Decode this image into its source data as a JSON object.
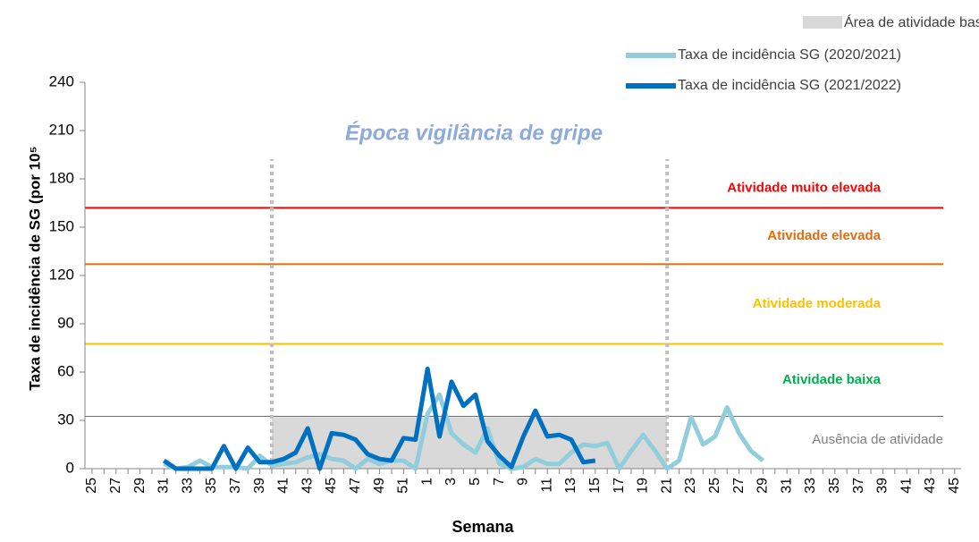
{
  "chart_data": {
    "type": "line",
    "annotation": "Época vigilância de gripe",
    "x_label": "Semana",
    "y_label": "Taxa de incidência de SG  (por 10⁵",
    "categories": [
      "25",
      null,
      "27",
      null,
      "29",
      null,
      "31",
      null,
      "33",
      null,
      "35",
      null,
      "37",
      null,
      "39",
      null,
      "41",
      null,
      "43",
      null,
      "45",
      null,
      "47",
      null,
      "49",
      null,
      "51",
      null,
      "1",
      null,
      "3",
      null,
      "5",
      null,
      "7",
      null,
      "9",
      null,
      "11",
      null,
      "13",
      null,
      "15",
      null,
      "17",
      null,
      "19",
      null,
      "21",
      null,
      "23",
      null,
      "25",
      null,
      "27",
      null,
      "29",
      null,
      "31",
      null,
      "33",
      null,
      "35",
      null,
      "37",
      null,
      "39",
      null,
      "41",
      null,
      "43",
      null,
      "45"
    ],
    "ylim": [
      0,
      240
    ],
    "yticks": [
      0,
      30,
      60,
      90,
      120,
      150,
      180,
      210,
      240
    ],
    "series": [
      {
        "name": "Taxa de incidência SG (2020/2021)",
        "color": "#92cddc",
        "values": [
          null,
          null,
          null,
          null,
          null,
          null,
          3,
          0,
          1,
          5,
          1,
          1,
          1,
          0,
          8,
          2,
          3,
          4,
          7,
          9,
          6,
          5,
          0,
          6,
          3,
          5,
          5,
          0,
          34,
          46,
          22,
          15,
          10,
          25,
          3,
          0,
          1,
          6,
          3,
          3,
          10,
          15,
          14,
          16,
          0,
          11,
          21,
          11,
          0,
          5,
          32,
          15,
          20,
          38,
          22,
          11,
          5,
          null,
          null,
          null,
          null,
          null,
          null,
          null,
          null,
          null,
          null,
          null,
          null,
          null,
          null,
          null,
          null
        ]
      },
      {
        "name": "Taxa de incidência SG (2021/2022)",
        "color": "#0070c0",
        "values": [
          null,
          null,
          null,
          null,
          null,
          null,
          5,
          0,
          0,
          0,
          0,
          14,
          0,
          13,
          4,
          4,
          6,
          10,
          25,
          0,
          22,
          21,
          18,
          9,
          6,
          5,
          19,
          18,
          62,
          20,
          54,
          39,
          46,
          17,
          8,
          1,
          20,
          36,
          20,
          21,
          18,
          4,
          5,
          null,
          null,
          null,
          null,
          null,
          null,
          null,
          null,
          null,
          null,
          null,
          null,
          null,
          null,
          null,
          null,
          null,
          null,
          null,
          null,
          null,
          null,
          null,
          null,
          null,
          null,
          null,
          null,
          null,
          null
        ]
      }
    ],
    "basal_area": {
      "name": "Área de atividade basal",
      "start_week": 40,
      "end_week": 20,
      "top": 32,
      "color": "#d9d9d9"
    },
    "thresholds": [
      {
        "label": "Ausência de atividade",
        "value": 0,
        "color": "#7f7f7f"
      },
      {
        "label": "Atividade baixa",
        "value": 32.5,
        "color": "#00b050"
      },
      {
        "label": "Atividade moderada",
        "value": 77.5,
        "color": "#ffc000"
      },
      {
        "label": "Atividade elevada",
        "value": 127,
        "color": "#e46c0a"
      },
      {
        "label": "Atividade muito elevada",
        "value": 162,
        "color": "#ff0000"
      }
    ],
    "season_markers": [
      40,
      20
    ]
  }
}
